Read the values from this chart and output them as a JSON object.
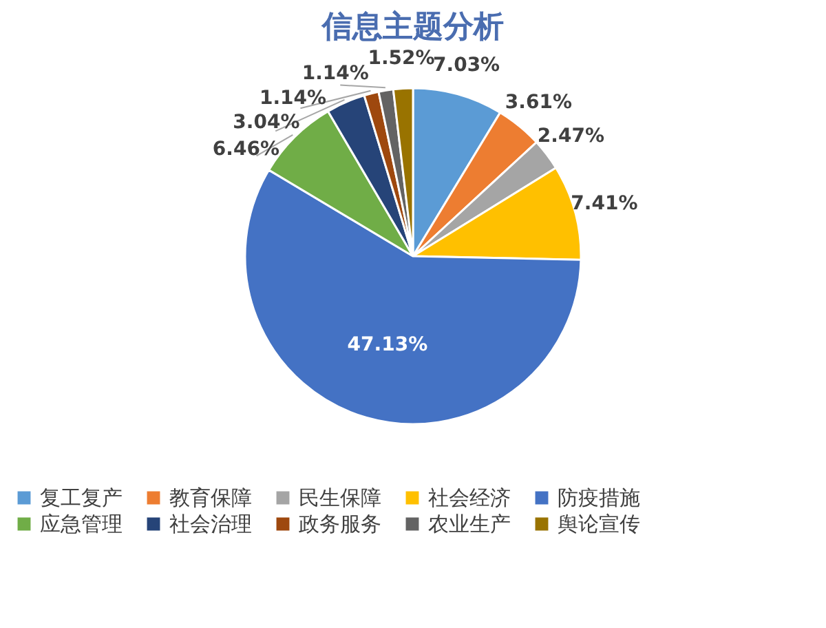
{
  "chart_data": {
    "type": "pie",
    "title": "信息主题分析",
    "categories": [
      "复工复产",
      "教育保障",
      "民生保障",
      "社会经济",
      "防疫措施",
      "应急管理",
      "社会治理",
      "政务服务",
      "农业生产",
      "舆论宣传"
    ],
    "values": [
      7.03,
      3.61,
      2.47,
      7.41,
      47.13,
      6.46,
      3.04,
      1.14,
      1.14,
      1.52
    ],
    "value_labels": [
      "7.03%",
      "3.61%",
      "2.47%",
      "7.41%",
      "47.13%",
      "6.46%",
      "3.04%",
      "1.14%",
      "1.14%",
      "1.52%"
    ],
    "colors": [
      "#5b9bd5",
      "#ed7d31",
      "#a5a5a5",
      "#ffc000",
      "#4472c4",
      "#70ad47",
      "#264478",
      "#9e480e",
      "#636363",
      "#997300"
    ],
    "legend": "bottom"
  }
}
